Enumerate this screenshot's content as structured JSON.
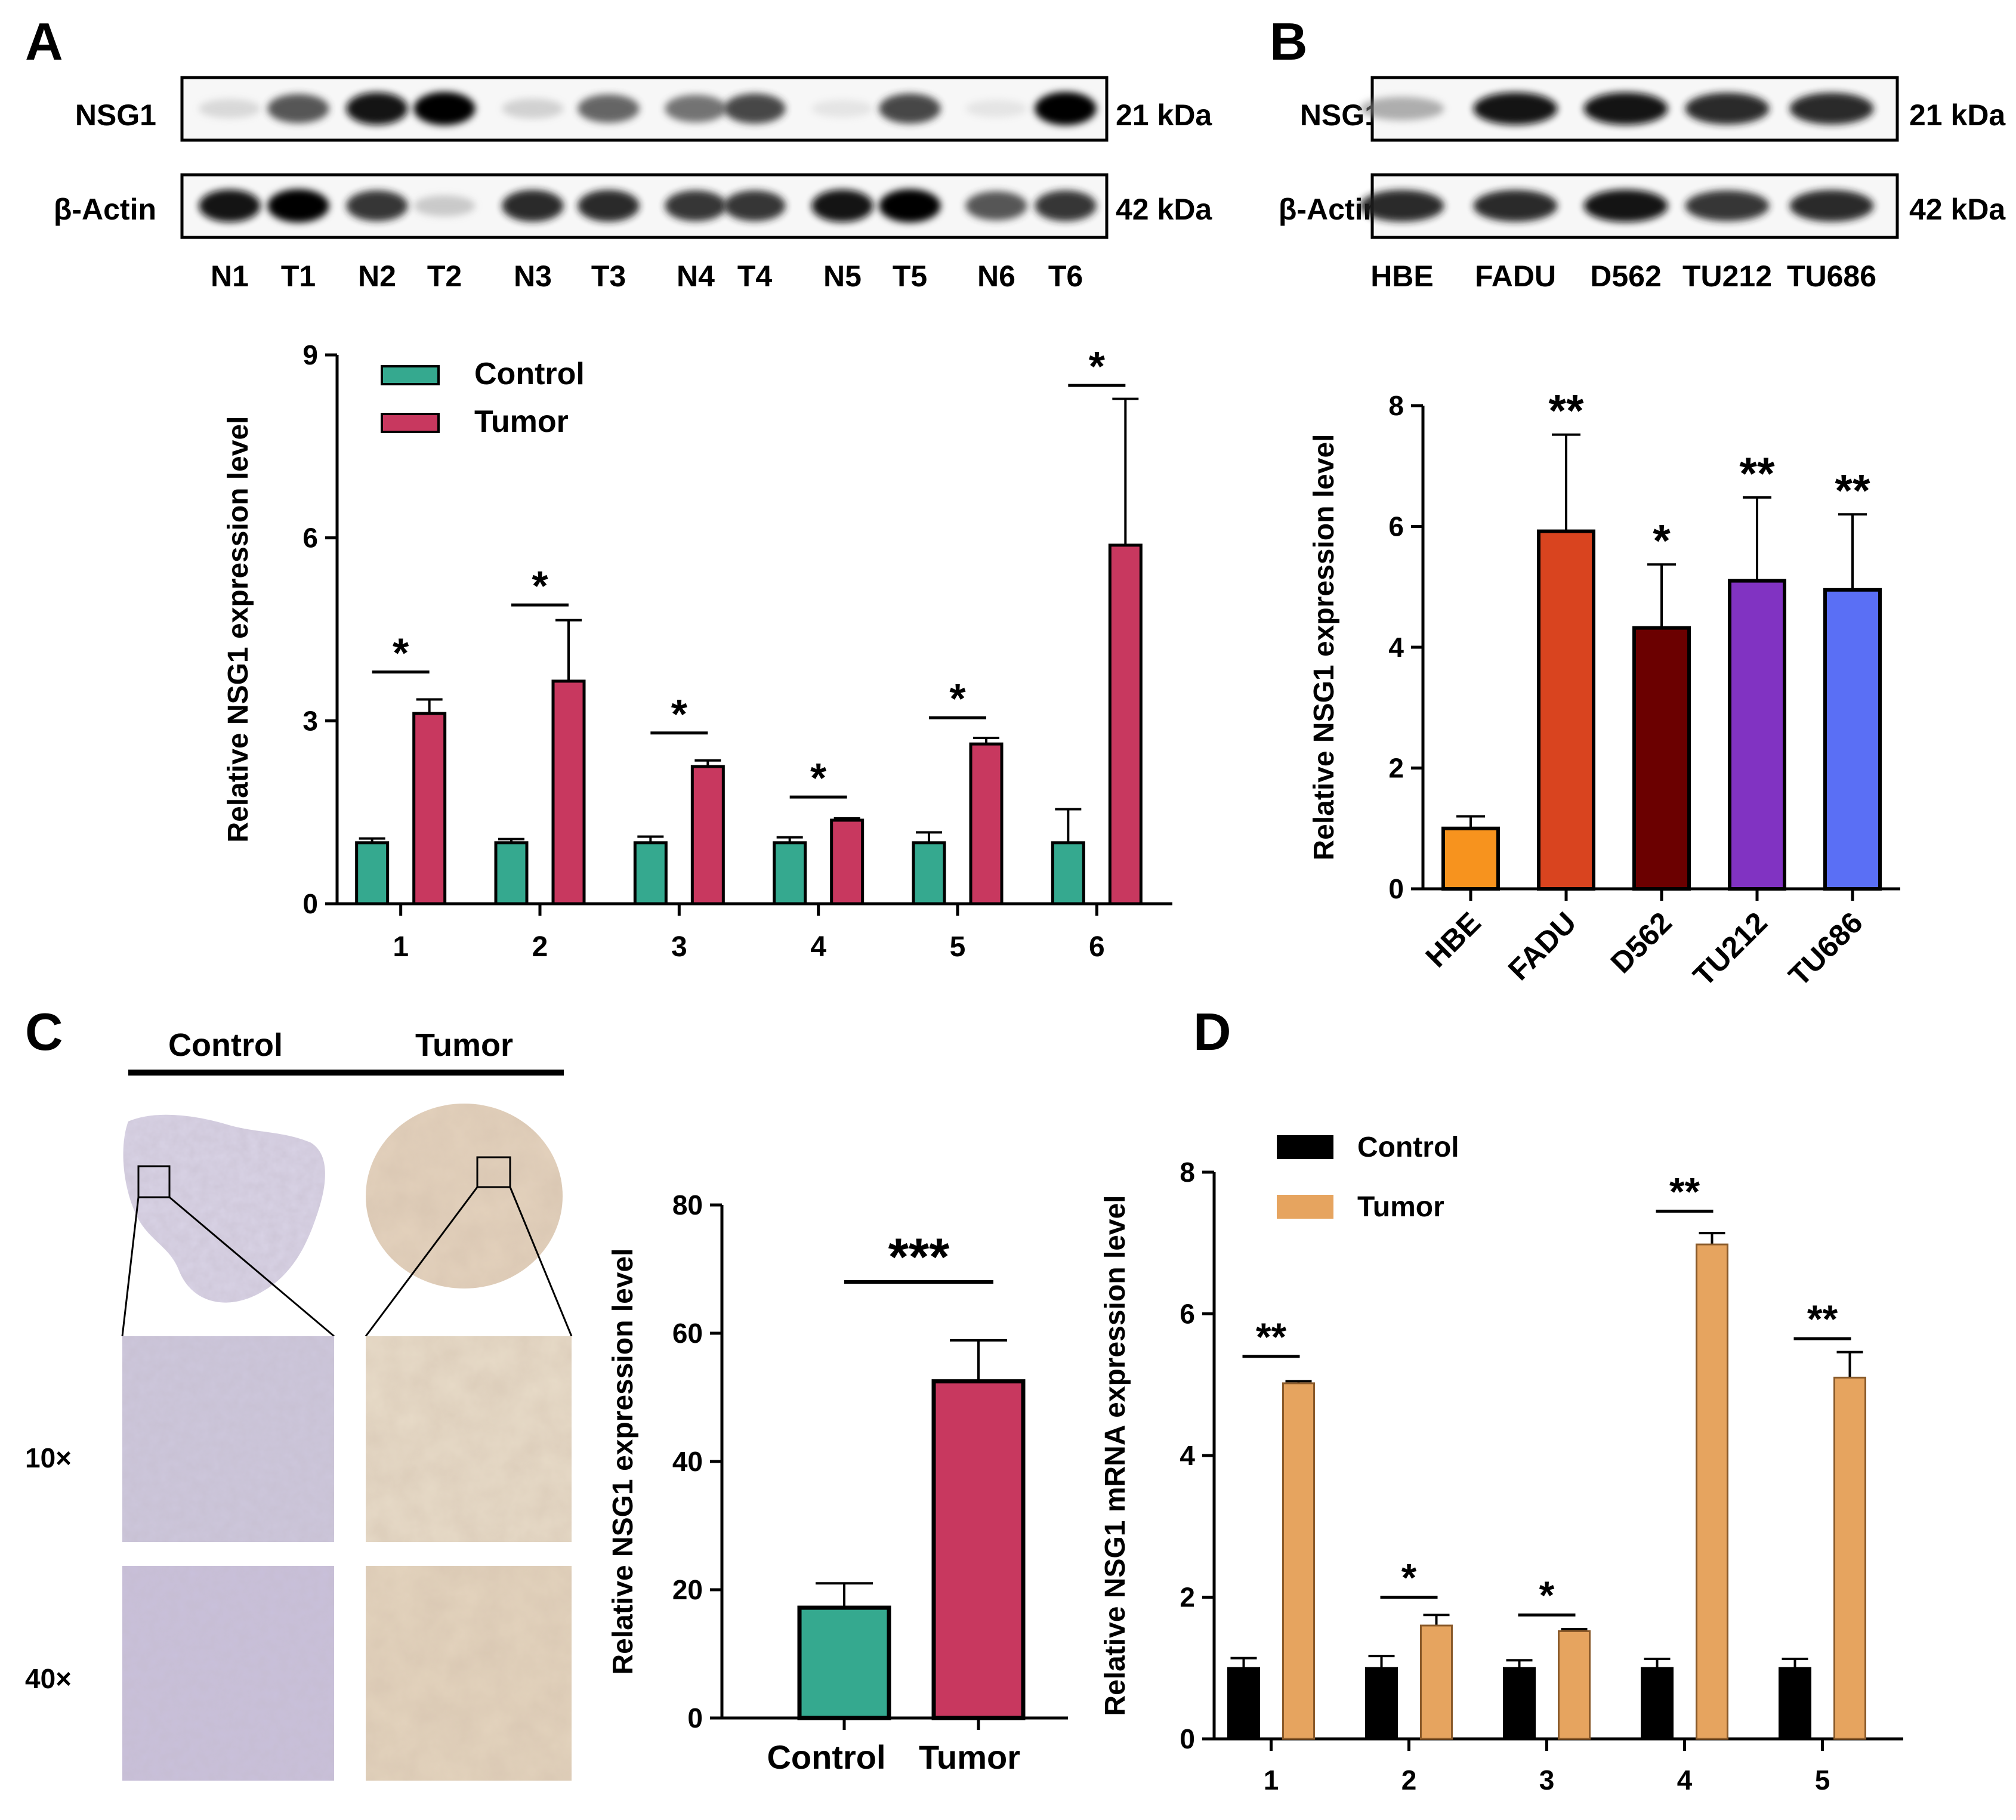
{
  "colors": {
    "control_teal": "#35a98f",
    "tumor_crimson": "#c8385f",
    "control_black": "#000000",
    "tumor_tan": "#e6a45f",
    "hbe": "#f7931e",
    "fadu": "#d9441f",
    "d562": "#6b0000",
    "tu212": "#8133c2",
    "tu686": "#5a6ff5"
  },
  "panels": {
    "A": {
      "label": "A",
      "blot_rows": [
        {
          "name": "NSG1",
          "size": "21 kDa"
        },
        {
          "name": "β-Actin",
          "size": "42 kDa"
        }
      ],
      "lanes": [
        "N1",
        "T1",
        "N2",
        "T2",
        "N3",
        "T3",
        "N4",
        "T4",
        "N5",
        "T5",
        "N6",
        "T6"
      ],
      "band_intensity": {
        "NSG1": [
          0.15,
          0.75,
          0.95,
          1.0,
          0.2,
          0.7,
          0.65,
          0.8,
          0.05,
          0.8,
          0.05,
          1.0
        ],
        "β-Actin": [
          0.95,
          1.0,
          0.85,
          0.25,
          0.9,
          0.9,
          0.85,
          0.85,
          0.95,
          1.0,
          0.75,
          0.85
        ]
      }
    },
    "B": {
      "label": "B",
      "blot_rows": [
        {
          "name": "NSG1",
          "size": "21 kDa"
        },
        {
          "name": "β-Actin",
          "size": "42 kDa"
        }
      ],
      "lanes": [
        "HBE",
        "FADU",
        "D562",
        "TU212",
        "TU686"
      ],
      "band_intensity": {
        "NSG1": [
          0.4,
          0.95,
          0.95,
          0.9,
          0.9
        ],
        "β-Actin": [
          0.9,
          0.9,
          0.95,
          0.85,
          0.9
        ]
      }
    },
    "C": {
      "label": "C",
      "column_headers": [
        "Control",
        "Tumor"
      ],
      "row_labels": [
        "10×",
        "40×"
      ]
    },
    "D": {
      "label": "D"
    }
  },
  "chart_data": [
    {
      "id": "A-chart",
      "type": "bar",
      "categories": [
        "1",
        "2",
        "3",
        "4",
        "5",
        "6"
      ],
      "series": [
        {
          "name": "Control",
          "values": [
            1.0,
            1.0,
            1.0,
            1.0,
            1.0,
            1.0
          ],
          "errors": [
            0.07,
            0.06,
            0.1,
            0.09,
            0.17,
            0.55
          ]
        },
        {
          "name": "Tumor",
          "values": [
            3.12,
            3.65,
            2.25,
            1.37,
            2.62,
            5.88
          ],
          "errors": [
            0.23,
            1.0,
            0.1,
            0.03,
            0.1,
            2.4
          ]
        }
      ],
      "significance": [
        "*",
        "*",
        "*",
        "*",
        "*",
        "*"
      ],
      "sig_line_y": [
        3.8,
        4.9,
        2.8,
        1.75,
        3.05,
        8.5
      ],
      "ylabel": "Relative  NSG1 expression level",
      "ylim": [
        0,
        9
      ],
      "yticks": [
        0,
        3,
        6,
        9
      ],
      "legend": "top-left"
    },
    {
      "id": "B-chart",
      "type": "bar",
      "categories": [
        "HBE",
        "FADU",
        "D562",
        "TU212",
        "TU686"
      ],
      "values": [
        1.0,
        5.92,
        4.32,
        5.1,
        4.95
      ],
      "errors": [
        0.2,
        1.6,
        1.05,
        1.38,
        1.25
      ],
      "significance": [
        "",
        "**",
        "*",
        "**",
        "**"
      ],
      "ylabel": "Relative  NSG1 expression level",
      "ylim": [
        0,
        8
      ],
      "yticks": [
        0,
        2,
        4,
        6,
        8
      ]
    },
    {
      "id": "C-chart",
      "type": "bar",
      "categories": [
        "Control",
        "Tumor"
      ],
      "values": [
        17.2,
        52.5
      ],
      "errors": [
        3.8,
        6.4
      ],
      "significance": "***",
      "ylabel": "Relative  NSG1 expression level",
      "ylim": [
        0,
        80
      ],
      "yticks": [
        0,
        20,
        40,
        60,
        80
      ]
    },
    {
      "id": "D-chart",
      "type": "bar",
      "categories": [
        "1",
        "2",
        "3",
        "4",
        "5"
      ],
      "series": [
        {
          "name": "Control",
          "values": [
            1.0,
            1.0,
            1.0,
            1.0,
            1.0
          ],
          "errors": [
            0.14,
            0.17,
            0.11,
            0.13,
            0.13
          ]
        },
        {
          "name": "Tumor",
          "values": [
            5.02,
            1.6,
            1.52,
            6.98,
            5.1
          ],
          "errors": [
            0.03,
            0.15,
            0.03,
            0.16,
            0.36
          ]
        }
      ],
      "significance": [
        "**",
        "*",
        "*",
        "**",
        "**"
      ],
      "sig_line_y": [
        5.4,
        2.0,
        1.75,
        7.45,
        5.65
      ],
      "ylabel": "Relative  NSG1 mRNA expression level",
      "ylim": [
        0,
        8
      ],
      "yticks": [
        0,
        2,
        4,
        6,
        8
      ],
      "legend": "top-left"
    }
  ]
}
